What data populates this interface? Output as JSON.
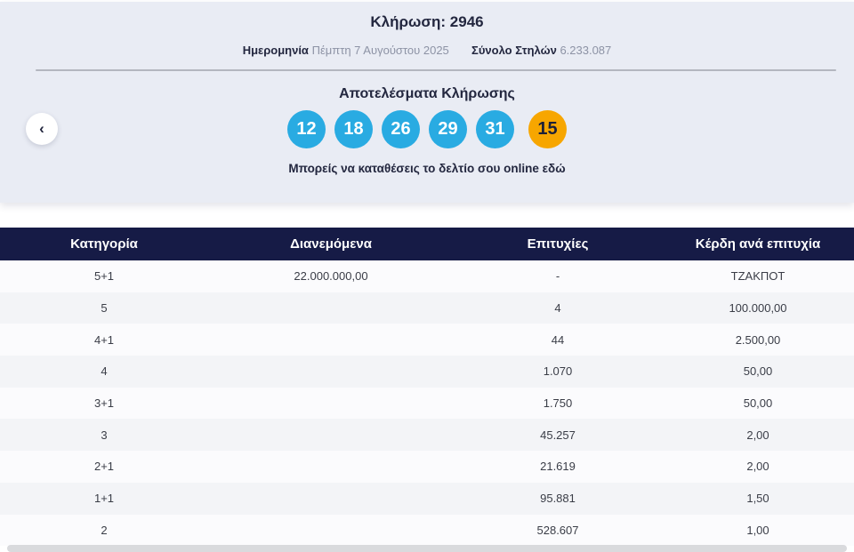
{
  "draw": {
    "title": "Κλήρωση: 2946",
    "date_label": "Ημερομηνία",
    "date_value": "Πέμπτη 7 Αυγούστου 2025",
    "columns_label": "Σύνολο Στηλών",
    "columns_value": "6.233.087",
    "results_heading": "Αποτελέσματα Κλήρωσης",
    "numbers": [
      "12",
      "18",
      "26",
      "29",
      "31"
    ],
    "bonus_number": "15",
    "online_text": "Μπορείς να καταθέσεις το δελτίο σου online ",
    "online_link_text": "εδώ",
    "prev_button_glyph": "‹"
  },
  "colors": {
    "number_ball": "#29abe2",
    "bonus_ball": "#f7a600",
    "table_header_bg": "#161b46",
    "header_card_bg": "#e9ecf4",
    "dark_text": "#23273f"
  },
  "table": {
    "headers": [
      "Κατηγορία",
      "Διανεμόμενα",
      "Επιτυχίες",
      "Κέρδη ανά επιτυχία"
    ],
    "rows": [
      {
        "category": "5+1",
        "distributed": "22.000.000,00",
        "winners": "-",
        "prize": "ΤΖΑΚΠΟΤ"
      },
      {
        "category": "5",
        "distributed": "",
        "winners": "4",
        "prize": "100.000,00"
      },
      {
        "category": "4+1",
        "distributed": "",
        "winners": "44",
        "prize": "2.500,00"
      },
      {
        "category": "4",
        "distributed": "",
        "winners": "1.070",
        "prize": "50,00"
      },
      {
        "category": "3+1",
        "distributed": "",
        "winners": "1.750",
        "prize": "50,00"
      },
      {
        "category": "3",
        "distributed": "",
        "winners": "45.257",
        "prize": "2,00"
      },
      {
        "category": "2+1",
        "distributed": "",
        "winners": "21.619",
        "prize": "2,00"
      },
      {
        "category": "1+1",
        "distributed": "",
        "winners": "95.881",
        "prize": "1,50"
      },
      {
        "category": "2",
        "distributed": "",
        "winners": "528.607",
        "prize": "1,00"
      }
    ]
  }
}
